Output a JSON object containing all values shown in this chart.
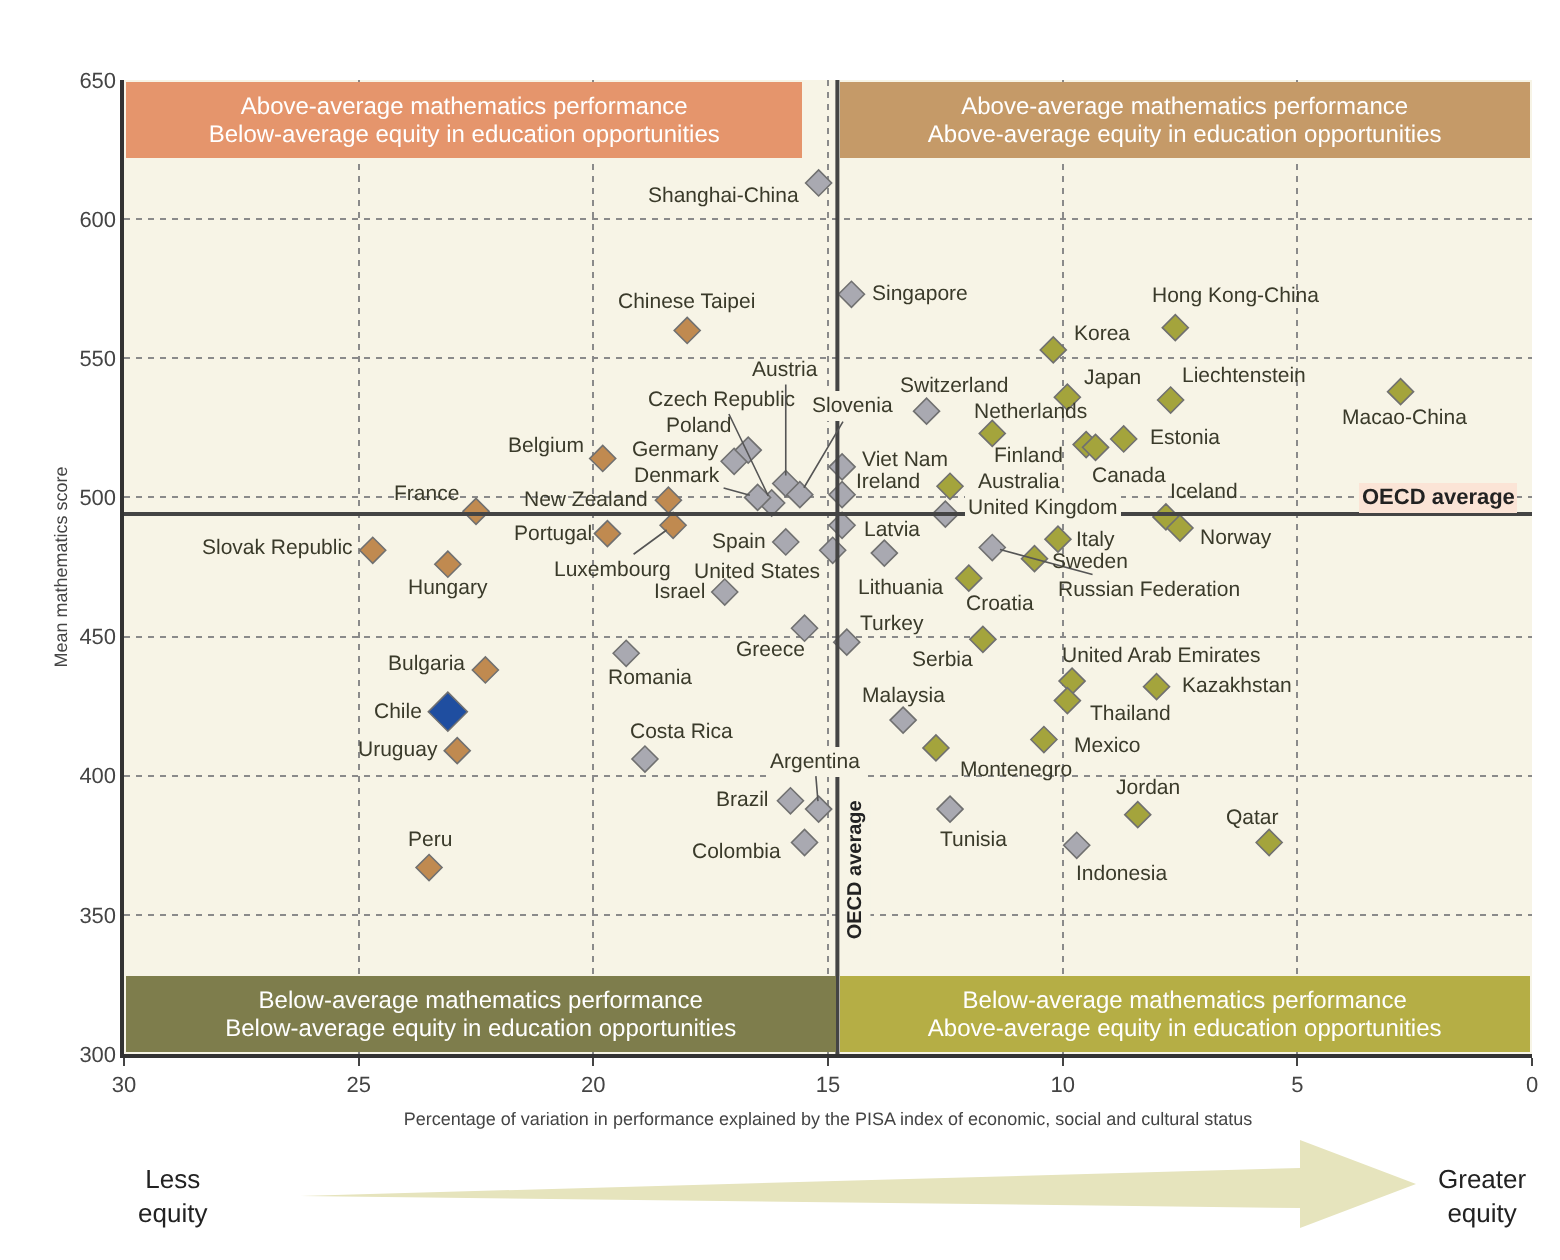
{
  "chart_data": {
    "type": "scatter",
    "xlabel": "Percentage of variation in performance explained by the PISA index of economic, social and cultural status",
    "ylabel": "Mean mathematics score",
    "xlim": [
      30,
      0
    ],
    "xticks": [
      30,
      25,
      20,
      15,
      10,
      5,
      0
    ],
    "ylim": [
      300,
      650
    ],
    "yticks": [
      300,
      350,
      400,
      450,
      500,
      550,
      600,
      650
    ],
    "grid": true,
    "marker": "diamond",
    "ref_lines": [
      {
        "axis": "x",
        "value": 14.8,
        "label": "OECD average"
      },
      {
        "axis": "y",
        "value": 494,
        "label": "OECD average"
      }
    ],
    "series": [
      {
        "color": "#c08a50",
        "x": [
          24.7,
          23.1,
          22.5,
          19.8,
          18.4,
          19.7,
          18.3,
          18.0,
          22.3,
          22.9,
          23.5
        ],
        "values": [
          481,
          476,
          495,
          514,
          499,
          487,
          490,
          560,
          438,
          409,
          367
        ]
      },
      {
        "color": "#a9a9b1",
        "x": [
          15.2,
          14.5,
          17.0,
          16.7,
          16.2,
          16.5,
          15.9,
          15.6,
          15.9,
          14.9,
          17.2,
          15.5,
          19.3,
          18.9,
          15.8,
          15.2,
          15.5,
          14.7,
          14.7,
          14.7,
          13.8,
          12.5,
          12.9,
          11.5,
          14.6,
          13.4,
          12.4,
          9.7
        ],
        "values": [
          613,
          573,
          513,
          517,
          498,
          500,
          505,
          501,
          484,
          481,
          466,
          453,
          444,
          406,
          391,
          388,
          376,
          511,
          501,
          490,
          480,
          494,
          531,
          482,
          448,
          420,
          388,
          375
        ]
      },
      {
        "color": "#a4a43c",
        "x": [
          10.2,
          7.6,
          9.9,
          7.7,
          2.8,
          11.5,
          9.5,
          9.3,
          8.7,
          12.4,
          7.8,
          7.5,
          10.1,
          10.6,
          12.0,
          11.7,
          9.8,
          9.9,
          8.0,
          10.4,
          12.7,
          8.4,
          5.6
        ],
        "values": [
          553,
          561,
          536,
          535,
          538,
          523,
          519,
          518,
          521,
          504,
          493,
          489,
          485,
          478,
          471,
          449,
          434,
          427,
          432,
          413,
          410,
          386,
          376
        ]
      },
      {
        "color": "#1f4ea0",
        "x": [
          23.1
        ],
        "values": [
          423
        ]
      }
    ],
    "annotations": [
      "Above-average mathematics performance\nBelow-average equity in education opportunities",
      "Above-average mathematics performance\nAbove-average equity in education opportunities",
      "Below-average mathematics performance\nBelow-average equity in education opportunities",
      "Below-average mathematics performance\nAbove-average equity in education opportunities",
      "Less\nequity",
      "Greater\nequity",
      {
        "text": "Slovak Republic",
        "x": 24.7,
        "y": 481
      },
      {
        "text": "Hungary",
        "x": 23.1,
        "y": 476
      },
      {
        "text": "France",
        "x": 22.5,
        "y": 495
      },
      {
        "text": "Belgium",
        "x": 19.8,
        "y": 514
      },
      {
        "text": "New Zealand",
        "x": 18.4,
        "y": 499
      },
      {
        "text": "Portugal",
        "x": 19.7,
        "y": 487
      },
      {
        "text": "Luxembourg",
        "x": 18.3,
        "y": 490
      },
      {
        "text": "Chinese Taipei",
        "x": 18.0,
        "y": 560
      },
      {
        "text": "Bulgaria",
        "x": 22.3,
        "y": 438
      },
      {
        "text": "Chile",
        "x": 23.1,
        "y": 423
      },
      {
        "text": "Uruguay",
        "x": 22.9,
        "y": 409
      },
      {
        "text": "Peru",
        "x": 23.5,
        "y": 367
      },
      {
        "text": "Shanghai-China",
        "x": 15.2,
        "y": 613
      },
      {
        "text": "Singapore",
        "x": 14.5,
        "y": 573
      },
      {
        "text": "Germany",
        "x": 17.0,
        "y": 513
      },
      {
        "text": "Poland",
        "x": 16.7,
        "y": 517
      },
      {
        "text": "Czech Republic",
        "x": 16.2,
        "y": 498
      },
      {
        "text": "Denmark",
        "x": 16.5,
        "y": 500
      },
      {
        "text": "Austria",
        "x": 15.9,
        "y": 505
      },
      {
        "text": "Slovenia",
        "x": 15.6,
        "y": 501
      },
      {
        "text": "Spain",
        "x": 15.9,
        "y": 484
      },
      {
        "text": "United States",
        "x": 14.9,
        "y": 481
      },
      {
        "text": "Israel",
        "x": 17.2,
        "y": 466
      },
      {
        "text": "Greece",
        "x": 15.5,
        "y": 453
      },
      {
        "text": "Romania",
        "x": 19.3,
        "y": 444
      },
      {
        "text": "Costa Rica",
        "x": 18.9,
        "y": 406
      },
      {
        "text": "Brazil",
        "x": 15.8,
        "y": 391
      },
      {
        "text": "Argentina",
        "x": 15.2,
        "y": 388
      },
      {
        "text": "Colombia",
        "x": 15.5,
        "y": 376
      },
      {
        "text": "Viet Nam",
        "x": 14.7,
        "y": 511
      },
      {
        "text": "Ireland",
        "x": 14.7,
        "y": 501
      },
      {
        "text": "Latvia",
        "x": 14.7,
        "y": 490
      },
      {
        "text": "Lithuania",
        "x": 13.8,
        "y": 480
      },
      {
        "text": "United Kingdom",
        "x": 12.5,
        "y": 494
      },
      {
        "text": "Switzerland",
        "x": 12.9,
        "y": 531
      },
      {
        "text": "Russian Federation",
        "x": 11.5,
        "y": 482
      },
      {
        "text": "Turkey",
        "x": 14.6,
        "y": 448
      },
      {
        "text": "Malaysia",
        "x": 13.4,
        "y": 420
      },
      {
        "text": "Tunisia",
        "x": 12.4,
        "y": 388
      },
      {
        "text": "Indonesia",
        "x": 9.7,
        "y": 375
      },
      {
        "text": "Korea",
        "x": 10.2,
        "y": 553
      },
      {
        "text": "Hong Kong-China",
        "x": 7.6,
        "y": 561
      },
      {
        "text": "Japan",
        "x": 9.9,
        "y": 536
      },
      {
        "text": "Liechtenstein",
        "x": 7.7,
        "y": 535
      },
      {
        "text": "Macao-China",
        "x": 2.8,
        "y": 538
      },
      {
        "text": "Netherlands",
        "x": 11.5,
        "y": 523
      },
      {
        "text": "Finland",
        "x": 9.5,
        "y": 519
      },
      {
        "text": "Canada",
        "x": 9.3,
        "y": 518
      },
      {
        "text": "Estonia",
        "x": 8.7,
        "y": 521
      },
      {
        "text": "Australia",
        "x": 12.4,
        "y": 504
      },
      {
        "text": "Iceland",
        "x": 7.8,
        "y": 493
      },
      {
        "text": "Norway",
        "x": 7.5,
        "y": 489
      },
      {
        "text": "Italy",
        "x": 10.1,
        "y": 485
      },
      {
        "text": "Sweden",
        "x": 10.6,
        "y": 478
      },
      {
        "text": "Croatia",
        "x": 12.0,
        "y": 471
      },
      {
        "text": "Serbia",
        "x": 11.7,
        "y": 449
      },
      {
        "text": "United Arab Emirates",
        "x": 9.8,
        "y": 434
      },
      {
        "text": "Thailand",
        "x": 9.9,
        "y": 427
      },
      {
        "text": "Kazakhstan",
        "x": 8.0,
        "y": 432
      },
      {
        "text": "Mexico",
        "x": 10.4,
        "y": 413
      },
      {
        "text": "Montenegro",
        "x": 12.7,
        "y": 410
      },
      {
        "text": "Jordan",
        "x": 8.4,
        "y": 386
      },
      {
        "text": "Qatar",
        "x": 5.6,
        "y": 376
      }
    ]
  }
}
